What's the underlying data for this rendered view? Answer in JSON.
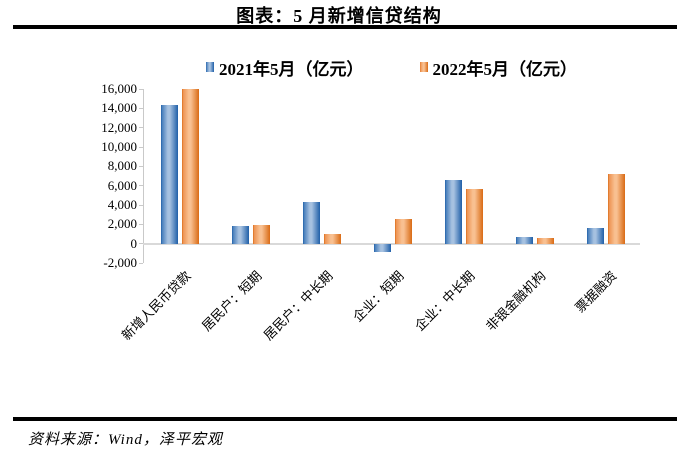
{
  "header": {
    "title": "图表：5 月新增信贷结构"
  },
  "chart_data": {
    "type": "bar",
    "title": "图表：5 月新增信贷结构",
    "categories": [
      "新增人民币贷款",
      "居民户：短期",
      "居民户：中长期",
      "企业：短期",
      "企业：中长期",
      "非银金融机构",
      "票据融资"
    ],
    "series": [
      {
        "name": "2021年5月（亿元）",
        "values": [
          14400,
          1850,
          4350,
          -850,
          6600,
          700,
          1600
        ],
        "color": "#1f5fa8",
        "color_light": "#a6c1e0",
        "color_edge": "#4a80bc"
      },
      {
        "name": "2022年5月（亿元）",
        "values": [
          16000,
          1950,
          1050,
          2550,
          5650,
          550,
          7200
        ],
        "color": "#d96b15",
        "color_light": "#f8c091",
        "color_edge": "#ee9453"
      }
    ],
    "xlabel": "",
    "ylabel": "",
    "ylim": [
      -2000,
      16000
    ],
    "yticks": [
      16000,
      14000,
      12000,
      10000,
      8000,
      6000,
      4000,
      2000,
      0,
      -2000
    ],
    "grid": false,
    "legend_position": "top",
    "axis_color": "#c9c9c9",
    "zero_line_color": "#d9d9d9"
  },
  "footer": {
    "source": "资料来源：Wind，泽平宏观"
  }
}
